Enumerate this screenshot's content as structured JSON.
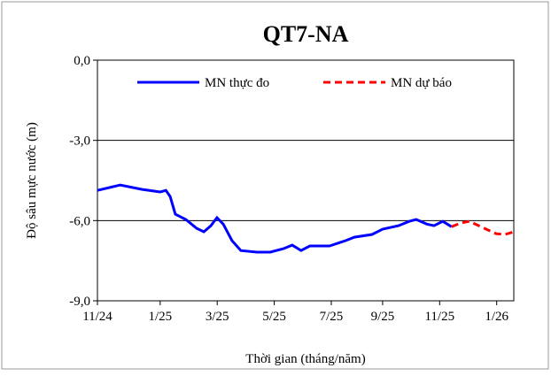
{
  "chart_data": {
    "type": "line",
    "title": "QT7-NA",
    "xlabel": "Thời gian (tháng/năm)",
    "ylabel": "Độ sâu mực nước (m)",
    "xlim": [
      0,
      14.6
    ],
    "xticks": [
      {
        "value": 0,
        "label": "11/24"
      },
      {
        "value": 2.2,
        "label": "1/25"
      },
      {
        "value": 4.2,
        "label": "3/25"
      },
      {
        "value": 6.2,
        "label": "5/25"
      },
      {
        "value": 8.2,
        "label": "7/25"
      },
      {
        "value": 10.0,
        "label": "9/25"
      },
      {
        "value": 12.0,
        "label": "11/25"
      },
      {
        "value": 14.0,
        "label": "1/26"
      }
    ],
    "ylim": [
      -9,
      0
    ],
    "yticks": [
      {
        "value": -9,
        "label": "-9,0"
      },
      {
        "value": -6,
        "label": "-6,0"
      },
      {
        "value": -3,
        "label": "-3,0"
      },
      {
        "value": 0,
        "label": "0,0"
      }
    ],
    "grid": true,
    "legend": "top",
    "series": [
      {
        "name": "MN thực đo",
        "color": "#0000ff",
        "dash": false,
        "x": [
          0,
          0.8,
          1.55,
          2.2,
          2.4,
          2.55,
          2.73,
          3.1,
          3.48,
          3.73,
          3.98,
          4.19,
          4.41,
          4.72,
          5.03,
          5.59,
          6.06,
          6.52,
          6.83,
          7.14,
          7.45,
          8.14,
          8.7,
          9.01,
          9.63,
          10.0,
          10.56,
          10.93,
          11.18,
          11.55,
          11.8,
          12.11,
          12.42
        ],
        "values": [
          -4.87,
          -4.67,
          -4.83,
          -4.93,
          -4.87,
          -5.1,
          -5.76,
          -5.96,
          -6.29,
          -6.42,
          -6.19,
          -5.89,
          -6.13,
          -6.75,
          -7.12,
          -7.18,
          -7.18,
          -7.05,
          -6.92,
          -7.12,
          -6.95,
          -6.95,
          -6.75,
          -6.62,
          -6.52,
          -6.32,
          -6.19,
          -6.03,
          -5.96,
          -6.13,
          -6.19,
          -6.03,
          -6.23
        ]
      },
      {
        "name": "MN dự báo",
        "color": "#ff0000",
        "dash": true,
        "x": [
          12.42,
          12.73,
          13.04,
          13.51,
          13.98,
          14.29,
          14.6
        ],
        "values": [
          -6.23,
          -6.09,
          -6.03,
          -6.26,
          -6.49,
          -6.52,
          -6.42
        ]
      }
    ]
  }
}
